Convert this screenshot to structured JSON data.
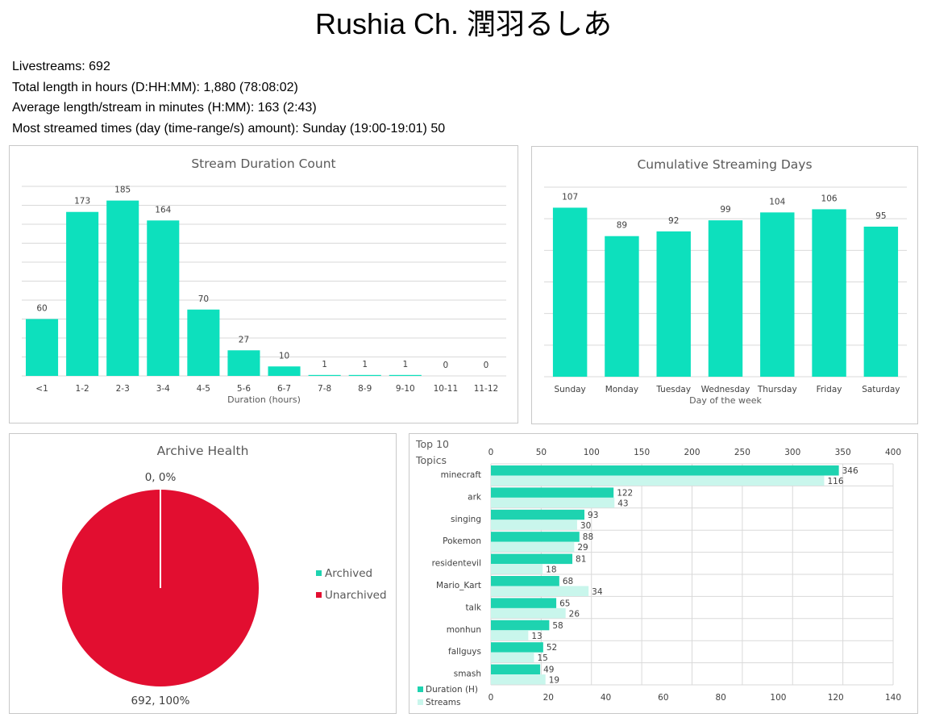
{
  "page": {
    "title": "Rushia Ch. 潤羽るしあ",
    "stats": [
      "Livestreams: 692",
      "Total length in hours (D:HH:MM): 1,880 (78:08:02)",
      "Average length/stream in minutes (H:MM): 163 (2:43)",
      "Most streamed times (day (time-range/s) amount): Sunday (19:00-19:01) 50"
    ]
  },
  "chart_data": [
    {
      "id": "duration",
      "type": "bar",
      "title": "Stream Duration Count",
      "xlabel": "Duration (hours)",
      "ylabel": "",
      "categories": [
        "<1",
        "1-2",
        "2-3",
        "3-4",
        "4-5",
        "5-6",
        "6-7",
        "7-8",
        "8-9",
        "9-10",
        "10-11",
        "11-12"
      ],
      "values": [
        60,
        173,
        185,
        164,
        70,
        27,
        10,
        1,
        1,
        1,
        0,
        0
      ],
      "ylim": [
        0,
        200
      ],
      "grid": true,
      "color": "#0de0bd"
    },
    {
      "id": "weekdays",
      "type": "bar",
      "title": "Cumulative Streaming Days",
      "xlabel": "Day of the week",
      "ylabel": "",
      "categories": [
        "Sunday",
        "Monday",
        "Tuesday",
        "Wednesday",
        "Thursday",
        "Friday",
        "Saturday"
      ],
      "values": [
        107,
        89,
        92,
        99,
        104,
        106,
        95
      ],
      "ylim": [
        0,
        120
      ],
      "grid": true,
      "color": "#0de0bd"
    },
    {
      "id": "archive",
      "type": "pie",
      "title": "Archive Health",
      "labels": [
        "Archived",
        "Unarchived"
      ],
      "values": [
        0,
        692
      ],
      "data_labels": [
        "0, 0%",
        "692, 100%"
      ],
      "colors": [
        "#1ed3b0",
        "#e20e30"
      ],
      "legend": "right"
    },
    {
      "id": "topics",
      "type": "bar",
      "orientation": "horizontal",
      "title": "Top 10 Topics",
      "categories": [
        "minecraft",
        "ark",
        "singing",
        "Pokemon",
        "residentevil",
        "Mario_Kart",
        "talk",
        "monhun",
        "fallguys",
        "smash"
      ],
      "series": [
        {
          "name": "Duration (H)",
          "values": [
            346,
            122,
            93,
            88,
            81,
            68,
            65,
            58,
            52,
            49
          ],
          "axis": "top",
          "color": "#1ed3b0"
        },
        {
          "name": "Streams",
          "values": [
            116,
            43,
            30,
            29,
            18,
            34,
            26,
            13,
            15,
            19
          ],
          "axis": "bottom",
          "color": "#c9f6ec"
        }
      ],
      "xlim_top": [
        0,
        400
      ],
      "xticks_top": [
        0,
        50,
        100,
        150,
        200,
        250,
        300,
        350,
        400
      ],
      "xlim_bottom": [
        0,
        140
      ],
      "xticks_bottom": [
        0,
        20,
        40,
        60,
        80,
        100,
        120,
        140
      ],
      "grid": true,
      "legend": "bottom-left"
    }
  ]
}
